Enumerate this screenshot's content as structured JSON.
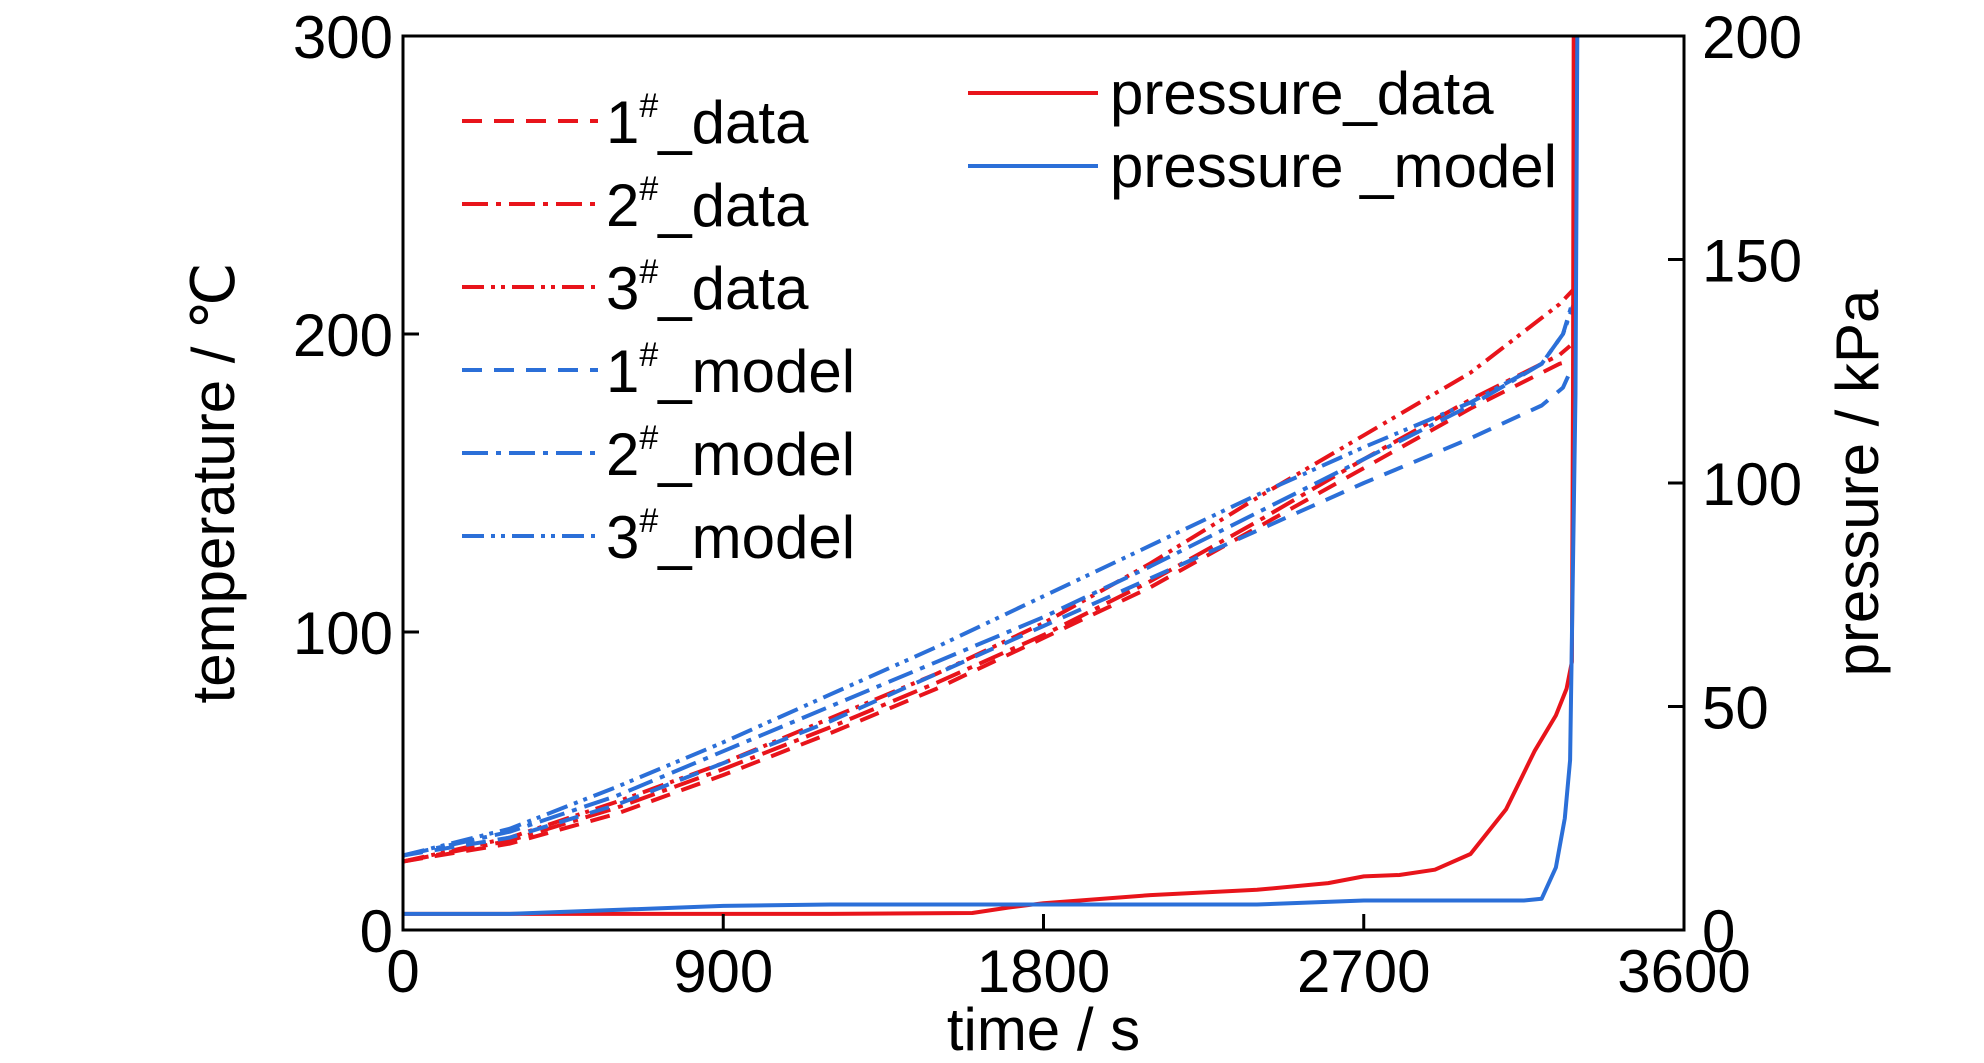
{
  "chart_data": {
    "type": "line",
    "title": "",
    "xlabel": "time / s",
    "ylabel_left": "temperature / ℃",
    "ylabel_right": "pressure / kPa",
    "xlim": [
      0,
      3600
    ],
    "ylim_left": [
      0,
      300
    ],
    "ylim_right": [
      0,
      200
    ],
    "x_ticks": [
      "0",
      "900",
      "1800",
      "2700",
      "3600"
    ],
    "y_left_ticks": [
      "0",
      "100",
      "200",
      "300"
    ],
    "y_right_ticks": [
      "0",
      "50",
      "100",
      "150",
      "200"
    ],
    "grid": false,
    "legend": [
      {
        "group": "temperature",
        "num": "1",
        "sup": "#",
        "suffix": "_data",
        "series": "t1_data"
      },
      {
        "group": "temperature",
        "num": "2",
        "sup": "#",
        "suffix": "_data",
        "series": "t2_data"
      },
      {
        "group": "temperature",
        "num": "3",
        "sup": "#",
        "suffix": "_data",
        "series": "t3_data"
      },
      {
        "group": "temperature",
        "num": "1",
        "sup": "#",
        "suffix": "_model",
        "series": "t1_model"
      },
      {
        "group": "temperature",
        "num": "2",
        "sup": "#",
        "suffix": "_model",
        "series": "t2_model"
      },
      {
        "group": "temperature",
        "num": "3",
        "sup": "#",
        "suffix": "_model",
        "series": "t3_model"
      },
      {
        "group": "pressure",
        "num": "",
        "sup": "",
        "suffix": "pressure_data",
        "series": "p_data"
      },
      {
        "group": "pressure",
        "num": "",
        "sup": "",
        "suffix": "pressure _model",
        "series": "p_model"
      }
    ],
    "series": [
      {
        "id": "t1_data",
        "axis": "left",
        "color": "#e8141b",
        "dash": "20 12",
        "x": [
          0,
          300,
          600,
          900,
          1200,
          1500,
          1800,
          2100,
          2400,
          2700,
          3000,
          3250,
          3280
        ],
        "y": [
          23,
          29,
          39,
          52,
          66,
          81,
          98,
          115,
          135,
          155,
          175,
          190,
          191
        ]
      },
      {
        "id": "t2_data",
        "axis": "left",
        "color": "#e8141b",
        "dash": "26 8 5 8",
        "x": [
          0,
          300,
          600,
          900,
          1200,
          1500,
          1800,
          2100,
          2400,
          2700,
          3000,
          3250,
          3280
        ],
        "y": [
          23,
          30,
          41,
          54,
          68,
          83,
          99,
          117,
          137,
          158,
          178,
          193,
          196
        ]
      },
      {
        "id": "t3_data",
        "axis": "left",
        "color": "#e8141b",
        "dash": "22 7 4 6 4 7",
        "x": [
          0,
          300,
          600,
          900,
          1200,
          1500,
          1800,
          2100,
          2400,
          2700,
          3000,
          3250,
          3290
        ],
        "y": [
          23,
          31,
          43,
          56,
          71,
          86,
          103,
          123,
          145,
          166,
          187,
          210,
          215
        ]
      },
      {
        "id": "t1_model",
        "axis": "left",
        "color": "#2b6fd8",
        "dash": "20 12",
        "x": [
          0,
          300,
          600,
          900,
          1200,
          1500,
          1800,
          2100,
          2400,
          2700,
          3000,
          3200,
          3260,
          3290
        ],
        "y": [
          25,
          31,
          42,
          56,
          70,
          86,
          102,
          118,
          134,
          150,
          165,
          176,
          182,
          190
        ]
      },
      {
        "id": "t2_model",
        "axis": "left",
        "color": "#2b6fd8",
        "dash": "26 8 5 8",
        "x": [
          0,
          300,
          600,
          900,
          1200,
          1500,
          1800,
          2100,
          2400,
          2700,
          3000,
          3200,
          3260,
          3290
        ],
        "y": [
          25,
          33,
          45,
          60,
          75,
          90,
          105,
          122,
          140,
          158,
          176,
          190,
          200,
          212
        ]
      },
      {
        "id": "t3_model",
        "axis": "left",
        "color": "#2b6fd8",
        "dash": "22 7 4 6 4 7",
        "x": [
          0,
          300,
          600,
          900,
          1200,
          1500,
          1800,
          2100,
          2400,
          2700,
          3000,
          3200,
          3260,
          3290
        ],
        "y": [
          25,
          34,
          48,
          63,
          79,
          95,
          112,
          129,
          146,
          162,
          177,
          190,
          200,
          210
        ]
      },
      {
        "id": "p_data",
        "axis": "right",
        "color": "#e8141b",
        "dash": "",
        "x": [
          0,
          600,
          1200,
          1600,
          1700,
          1800,
          2100,
          2400,
          2600,
          2700,
          2800,
          2900,
          3000,
          3100,
          3180,
          3240,
          3270,
          3285,
          3288,
          3290
        ],
        "y": [
          3.6,
          3.6,
          3.6,
          3.8,
          5.0,
          6.0,
          7.8,
          9.0,
          10.5,
          12.0,
          12.3,
          13.5,
          17.0,
          27.0,
          40.0,
          48.0,
          54.0,
          60.0,
          120.0,
          200.0
        ]
      },
      {
        "id": "p_model",
        "axis": "right",
        "color": "#2b6fd8",
        "dash": "",
        "x": [
          0,
          300,
          600,
          900,
          1200,
          1500,
          1800,
          2100,
          2400,
          2700,
          3000,
          3150,
          3200,
          3240,
          3265,
          3280,
          3295,
          3300
        ],
        "y": [
          3.6,
          3.6,
          4.5,
          5.4,
          5.7,
          5.7,
          5.7,
          5.7,
          5.7,
          6.6,
          6.6,
          6.6,
          7.0,
          14.0,
          25.0,
          38.0,
          120.0,
          200.0
        ]
      }
    ]
  }
}
